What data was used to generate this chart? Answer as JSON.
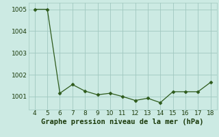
{
  "x": [
    4,
    5,
    6,
    7,
    8,
    9,
    10,
    11,
    12,
    13,
    14,
    15,
    16,
    17,
    18
  ],
  "y": [
    1005.0,
    1005.0,
    1001.15,
    1001.55,
    1001.25,
    1001.08,
    1001.15,
    1001.0,
    1000.82,
    1000.92,
    1000.72,
    1001.22,
    1001.22,
    1001.22,
    1001.65
  ],
  "line_color": "#2d5a1b",
  "marker": "D",
  "marker_size": 2.5,
  "bg_color": "#cceae3",
  "grid_color": "#a0c8c0",
  "xlabel": "Graphe pression niveau de la mer (hPa)",
  "xlabel_color": "#1a3a0a",
  "xlabel_fontsize": 7.5,
  "tick_fontsize": 6.5,
  "xlim": [
    3.5,
    18.5
  ],
  "ylim": [
    1000.4,
    1005.3
  ],
  "yticks": [
    1001,
    1002,
    1003,
    1004,
    1005
  ],
  "xticks": [
    4,
    5,
    6,
    7,
    8,
    9,
    10,
    11,
    12,
    13,
    14,
    15,
    16,
    17,
    18
  ]
}
